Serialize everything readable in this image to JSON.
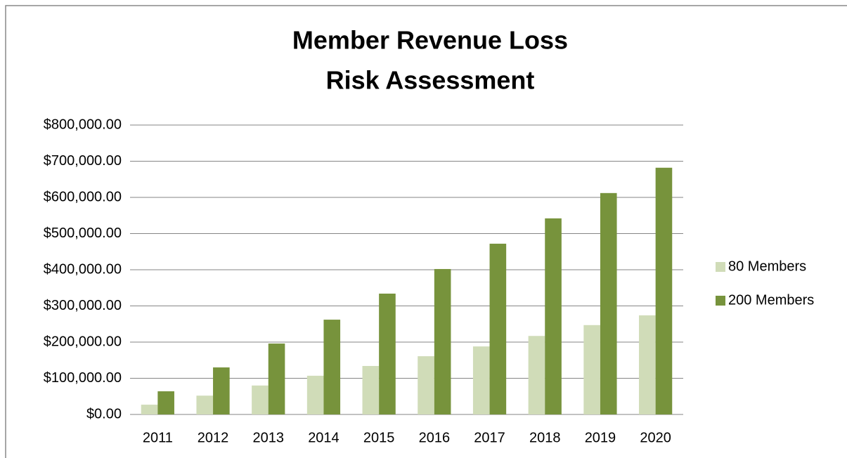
{
  "chart_data": {
    "type": "bar",
    "title": [
      "Member Revenue Loss",
      "Risk Assessment"
    ],
    "categories": [
      "2011",
      "2012",
      "2013",
      "2014",
      "2015",
      "2016",
      "2017",
      "2018",
      "2019",
      "2020"
    ],
    "series": [
      {
        "name": "80 Members",
        "color": "#d0dcb8",
        "values": [
          27000,
          52000,
          80000,
          107000,
          134000,
          161000,
          188000,
          217000,
          247000,
          274000
        ]
      },
      {
        "name": "200 Members",
        "color": "#77933c",
        "values": [
          64000,
          130000,
          196000,
          262000,
          334000,
          402000,
          472000,
          542000,
          612000,
          682000
        ]
      }
    ],
    "ylim": [
      0,
      800000
    ],
    "yticks": [
      {
        "value": 0,
        "label": "$0.00"
      },
      {
        "value": 100000,
        "label": "$100,000.00"
      },
      {
        "value": 200000,
        "label": "$200,000.00"
      },
      {
        "value": 300000,
        "label": "$300,000.00"
      },
      {
        "value": 400000,
        "label": "$400,000.00"
      },
      {
        "value": 500000,
        "label": "$500,000.00"
      },
      {
        "value": 600000,
        "label": "$600,000.00"
      },
      {
        "value": 700000,
        "label": "$700,000.00"
      },
      {
        "value": 800000,
        "label": "$800,000.00"
      }
    ],
    "grid": true,
    "legend": "right"
  }
}
